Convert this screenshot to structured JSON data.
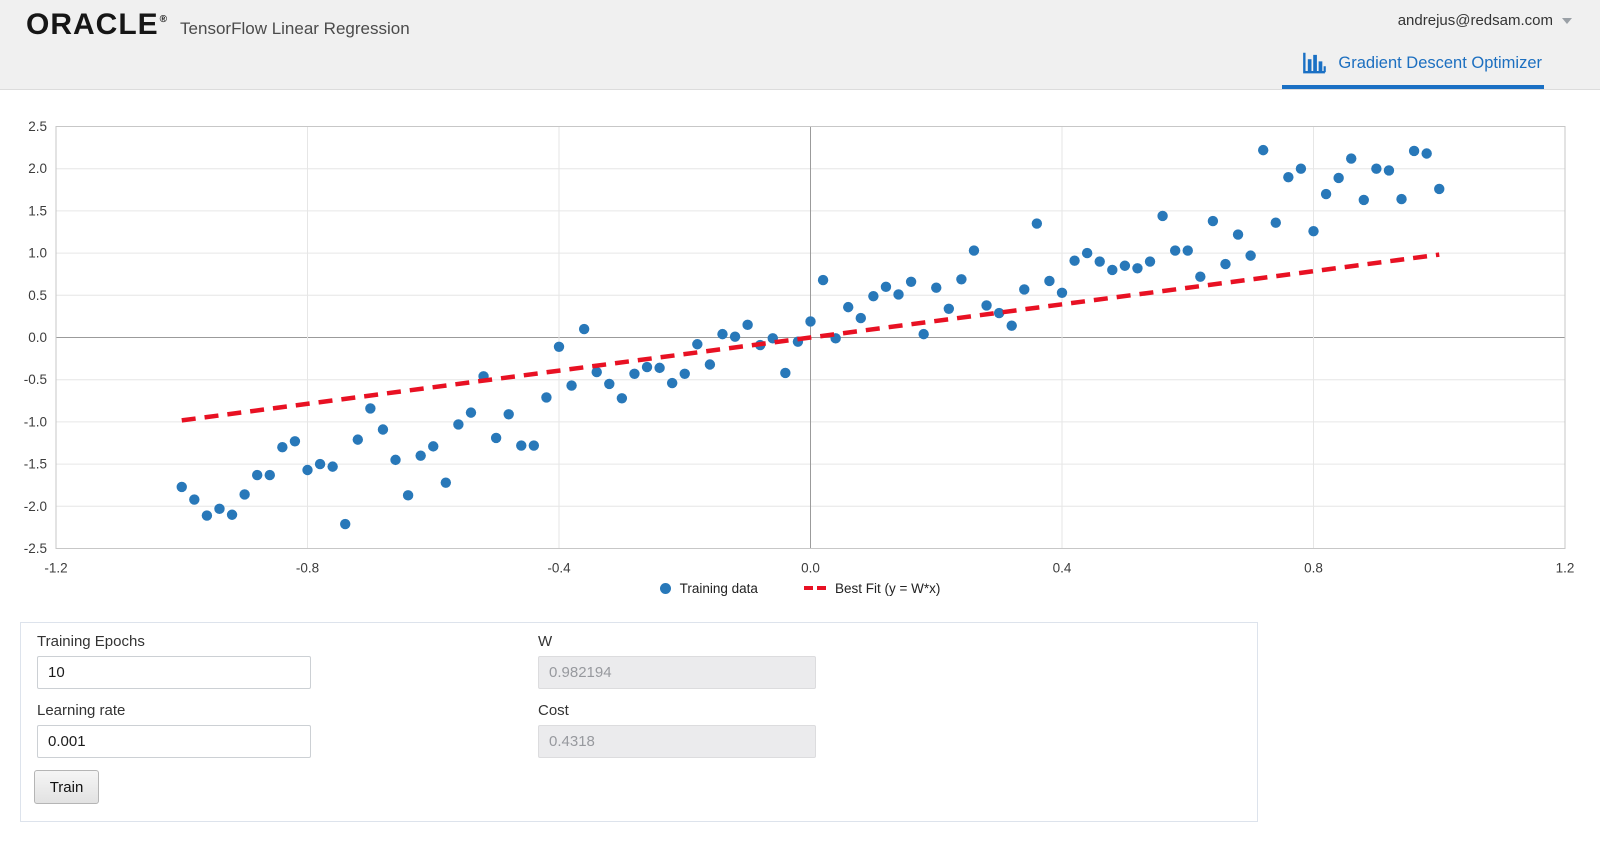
{
  "header": {
    "logo": "ORACLE",
    "registered": "®",
    "app_title": "TensorFlow Linear Regression",
    "user_email": "andrejus@redsam.com",
    "tab_label": "Gradient Descent Optimizer"
  },
  "chart_data": {
    "type": "scatter",
    "title": "",
    "xlabel": "",
    "ylabel": "",
    "xlim": [
      -1.2,
      1.2
    ],
    "ylim": [
      -2.5,
      2.5
    ],
    "x_ticks": [
      "-1.2",
      "-0.8",
      "-0.4",
      "0.0",
      "0.4",
      "0.8",
      "1.2"
    ],
    "y_ticks": [
      "2.5",
      "2.0",
      "1.5",
      "1.0",
      "0.5",
      "0.0",
      "-0.5",
      "-1.0",
      "-1.5",
      "-2.0",
      "-2.5"
    ],
    "grid": true,
    "legend_position": "bottom",
    "series": [
      {
        "name": "Training data",
        "type": "scatter",
        "color": "#2878b9",
        "points": [
          [
            -1,
            -1.77
          ],
          [
            -0.98,
            -1.92
          ],
          [
            -0.96,
            -2.11
          ],
          [
            -0.94,
            -2.03
          ],
          [
            -0.92,
            -2.1
          ],
          [
            -0.9,
            -1.86
          ],
          [
            -0.88,
            -1.63
          ],
          [
            -0.86,
            -1.63
          ],
          [
            -0.84,
            -1.3
          ],
          [
            -0.82,
            -1.23
          ],
          [
            -0.8,
            -1.57
          ],
          [
            -0.78,
            -1.5
          ],
          [
            -0.76,
            -1.53
          ],
          [
            -0.74,
            -2.21
          ],
          [
            -0.72,
            -1.21
          ],
          [
            -0.7,
            -0.84
          ],
          [
            -0.68,
            -1.09
          ],
          [
            -0.66,
            -1.45
          ],
          [
            -0.64,
            -1.87
          ],
          [
            -0.62,
            -1.4
          ],
          [
            -0.6,
            -1.29
          ],
          [
            -0.58,
            -1.72
          ],
          [
            -0.56,
            -1.03
          ],
          [
            -0.54,
            -0.89
          ],
          [
            -0.52,
            -0.46
          ],
          [
            -0.5,
            -1.19
          ],
          [
            -0.48,
            -0.91
          ],
          [
            -0.46,
            -1.28
          ],
          [
            -0.44,
            -1.28
          ],
          [
            -0.42,
            -0.71
          ],
          [
            -0.4,
            -0.11
          ],
          [
            -0.38,
            -0.57
          ],
          [
            -0.36,
            0.1
          ],
          [
            -0.34,
            -0.41
          ],
          [
            -0.32,
            -0.55
          ],
          [
            -0.3,
            -0.72
          ],
          [
            -0.28,
            -0.43
          ],
          [
            -0.26,
            -0.35
          ],
          [
            -0.24,
            -0.36
          ],
          [
            -0.22,
            -0.54
          ],
          [
            -0.2,
            -0.43
          ],
          [
            -0.18,
            -0.08
          ],
          [
            -0.16,
            -0.32
          ],
          [
            -0.14,
            0.04
          ],
          [
            -0.12,
            0.01
          ],
          [
            -0.1,
            0.15
          ],
          [
            -0.08,
            -0.09
          ],
          [
            -0.06,
            -0.01
          ],
          [
            -0.04,
            -0.42
          ],
          [
            -0.02,
            -0.05
          ],
          [
            0,
            0.19
          ],
          [
            0.02,
            0.68
          ],
          [
            0.04,
            -0.01
          ],
          [
            0.06,
            0.36
          ],
          [
            0.08,
            0.23
          ],
          [
            0.1,
            0.49
          ],
          [
            0.12,
            0.6
          ],
          [
            0.14,
            0.51
          ],
          [
            0.16,
            0.66
          ],
          [
            0.18,
            0.04
          ],
          [
            0.2,
            0.59
          ],
          [
            0.22,
            0.34
          ],
          [
            0.24,
            0.69
          ],
          [
            0.26,
            1.03
          ],
          [
            0.28,
            0.38
          ],
          [
            0.3,
            0.29
          ],
          [
            0.32,
            0.14
          ],
          [
            0.34,
            0.57
          ],
          [
            0.36,
            1.35
          ],
          [
            0.38,
            0.67
          ],
          [
            0.4,
            0.53
          ],
          [
            0.42,
            0.91
          ],
          [
            0.44,
            1
          ],
          [
            0.46,
            0.9
          ],
          [
            0.48,
            0.8
          ],
          [
            0.5,
            0.85
          ],
          [
            0.52,
            0.82
          ],
          [
            0.54,
            0.9
          ],
          [
            0.56,
            1.44
          ],
          [
            0.58,
            1.03
          ],
          [
            0.6,
            1.03
          ],
          [
            0.62,
            0.72
          ],
          [
            0.64,
            1.38
          ],
          [
            0.66,
            0.87
          ],
          [
            0.68,
            1.22
          ],
          [
            0.7,
            0.97
          ],
          [
            0.72,
            2.22
          ],
          [
            0.74,
            1.36
          ],
          [
            0.76,
            1.9
          ],
          [
            0.78,
            2
          ],
          [
            0.8,
            1.26
          ],
          [
            0.82,
            1.7
          ],
          [
            0.84,
            1.89
          ],
          [
            0.86,
            2.12
          ],
          [
            0.88,
            1.63
          ],
          [
            0.9,
            2
          ],
          [
            0.92,
            1.98
          ],
          [
            0.94,
            1.64
          ],
          [
            0.96,
            2.21
          ],
          [
            0.98,
            2.18
          ],
          [
            1,
            1.76
          ]
        ]
      },
      {
        "name": "Best Fit (y = W*x)",
        "type": "line",
        "style": "dashed",
        "color": "#e81123",
        "points": [
          [
            -1.0,
            -0.982
          ],
          [
            1.0,
            0.982
          ]
        ]
      }
    ]
  },
  "form": {
    "training_epochs": {
      "label": "Training Epochs",
      "value": "10"
    },
    "learning_rate": {
      "label": "Learning rate",
      "value": "0.001"
    },
    "w": {
      "label": "W",
      "value": "0.982194"
    },
    "cost": {
      "label": "Cost",
      "value": "0.4318"
    },
    "train_button": "Train"
  }
}
